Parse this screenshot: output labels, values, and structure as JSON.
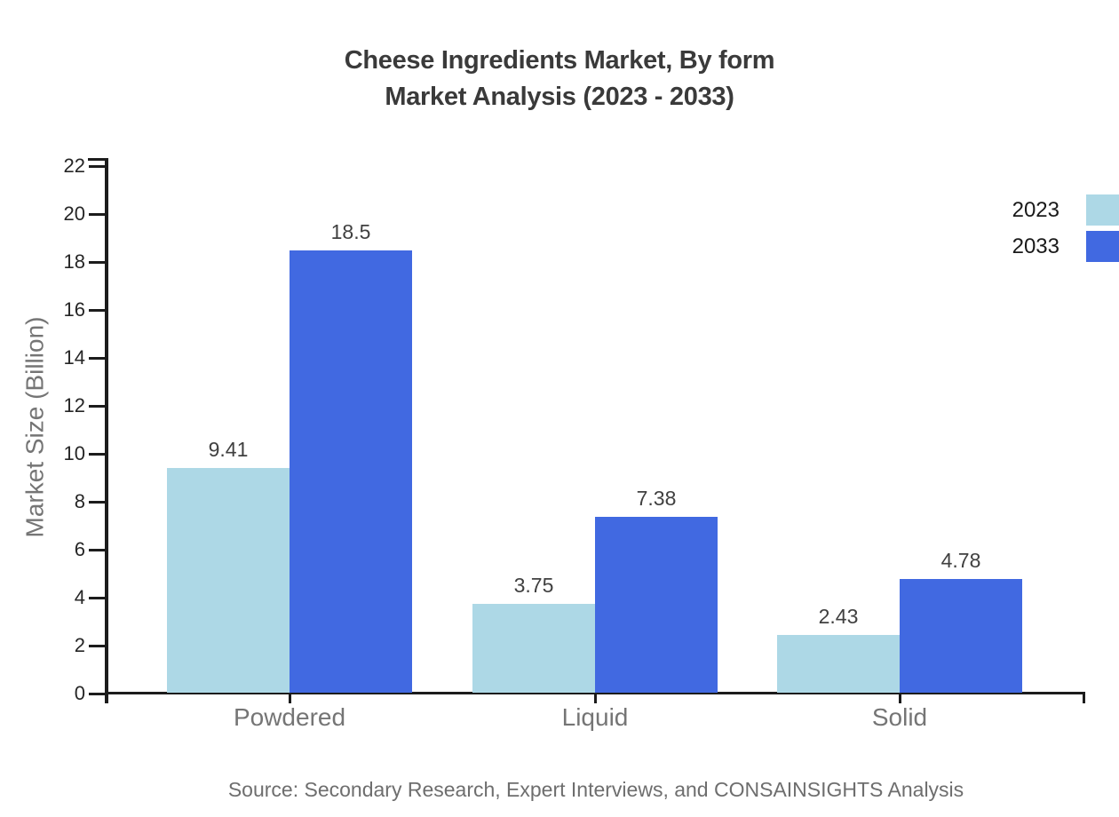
{
  "title": {
    "line1": "Cheese Ingredients Market, By form",
    "line2": "Market Analysis (2023 - 2033)"
  },
  "source": "Source: Secondary Research, Expert Interviews, and CONSAINSIGHTS Analysis",
  "chart_data": {
    "type": "bar",
    "categories": [
      "Powdered",
      "Liquid",
      "Solid"
    ],
    "series": [
      {
        "name": "2023",
        "color": "#ADD8E6",
        "values": [
          9.41,
          3.75,
          2.43
        ]
      },
      {
        "name": "2033",
        "color": "#4169E1",
        "values": [
          18.5,
          7.38,
          4.78
        ]
      }
    ],
    "value_labels": [
      "9.41",
      "18.5",
      "3.75",
      "7.38",
      "2.43",
      "4.78"
    ],
    "title": "Cheese Ingredients Market, By form Market Analysis (2023 - 2033)",
    "xlabel": "",
    "ylabel": "Market Size (Billion)",
    "ylim": [
      0,
      22
    ],
    "yticks": [
      0,
      2,
      4,
      6,
      8,
      10,
      12,
      14,
      16,
      18,
      20,
      22
    ],
    "grid": false,
    "legend_position": "right-top",
    "axis_color": "#1c1c1c",
    "label_color": "#404040",
    "category_color": "#757575"
  }
}
